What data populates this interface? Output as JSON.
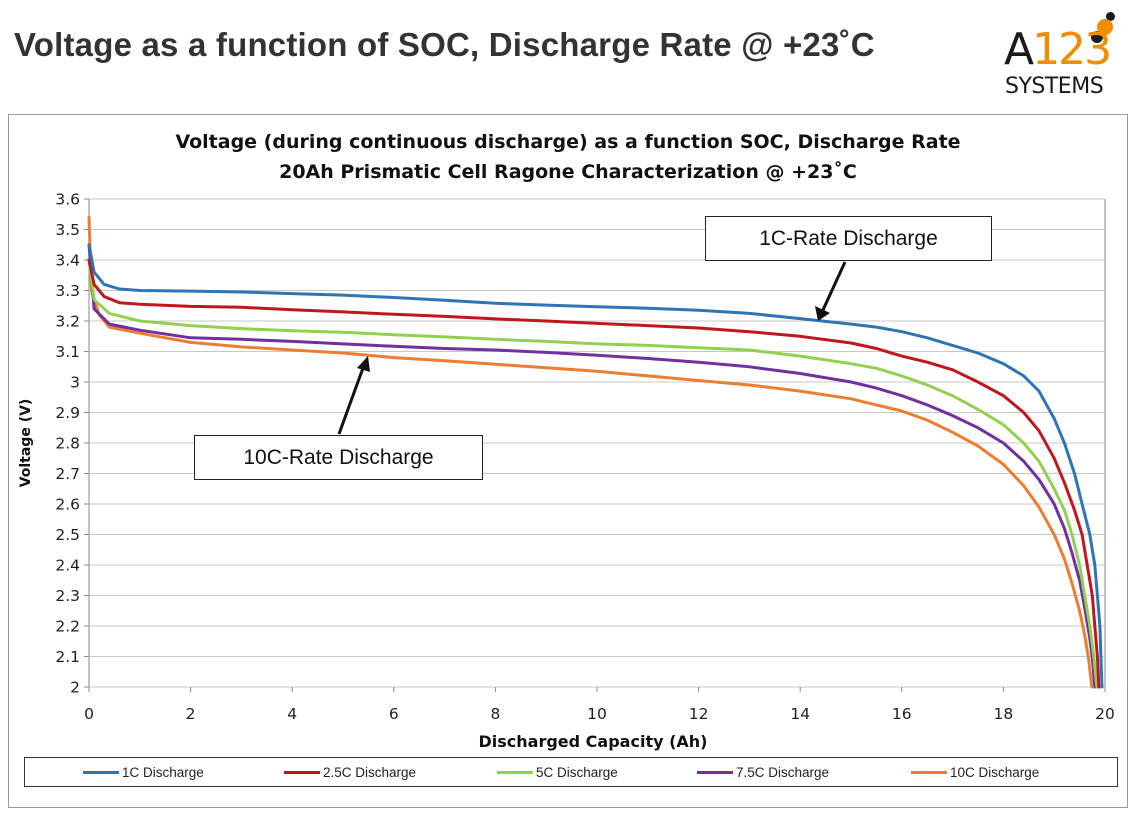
{
  "slide_title": "Voltage as a function of SOC, Discharge Rate @ +23˚C",
  "logo": {
    "brand_letter": "A",
    "brand_number": "123",
    "subtitle": "SYSTEMS"
  },
  "annotations": {
    "callout_1c": "1C-Rate Discharge",
    "callout_10c": "10C-Rate Discharge"
  },
  "chart_data": {
    "type": "line",
    "title": "Voltage (during continuous discharge) as a function SOC, Discharge Rate",
    "subtitle": "20Ah Prismatic Cell Ragone Characterization @ +23˚C",
    "xlabel": "Discharged Capacity (Ah)",
    "ylabel": "Voltage (V)",
    "xlim": [
      0,
      20
    ],
    "ylim": [
      2,
      3.6
    ],
    "x_ticks": [
      "0",
      "2",
      "4",
      "6",
      "8",
      "10",
      "12",
      "14",
      "16",
      "18",
      "20"
    ],
    "y_ticks": [
      "2",
      "2.1",
      "2.2",
      "2.3",
      "2.4",
      "2.5",
      "2.6",
      "2.7",
      "2.8",
      "2.9",
      "3",
      "3.1",
      "3.2",
      "3.3",
      "3.4",
      "3.5",
      "3.6"
    ],
    "grid": true,
    "legend_position": "bottom",
    "series": [
      {
        "name": "1C Discharge",
        "color": "#2e75b6",
        "points": [
          [
            0,
            3.45
          ],
          [
            0.1,
            3.36
          ],
          [
            0.3,
            3.32
          ],
          [
            0.6,
            3.305
          ],
          [
            1,
            3.3
          ],
          [
            2,
            3.298
          ],
          [
            3,
            3.295
          ],
          [
            4,
            3.29
          ],
          [
            5,
            3.285
          ],
          [
            6,
            3.277
          ],
          [
            7,
            3.268
          ],
          [
            8,
            3.258
          ],
          [
            9,
            3.252
          ],
          [
            10,
            3.247
          ],
          [
            11,
            3.242
          ],
          [
            12,
            3.235
          ],
          [
            13,
            3.225
          ],
          [
            14,
            3.208
          ],
          [
            15,
            3.19
          ],
          [
            15.5,
            3.18
          ],
          [
            16,
            3.165
          ],
          [
            16.5,
            3.145
          ],
          [
            17,
            3.12
          ],
          [
            17.5,
            3.095
          ],
          [
            18,
            3.06
          ],
          [
            18.4,
            3.02
          ],
          [
            18.7,
            2.97
          ],
          [
            19,
            2.88
          ],
          [
            19.2,
            2.8
          ],
          [
            19.4,
            2.7
          ],
          [
            19.55,
            2.6
          ],
          [
            19.7,
            2.5
          ],
          [
            19.8,
            2.4
          ],
          [
            19.85,
            2.3
          ],
          [
            19.9,
            2.2
          ],
          [
            19.92,
            2.1
          ],
          [
            19.94,
            2.0
          ]
        ]
      },
      {
        "name": "2.5C Discharge",
        "color": "#c0161d",
        "points": [
          [
            0,
            3.4
          ],
          [
            0.1,
            3.32
          ],
          [
            0.3,
            3.28
          ],
          [
            0.6,
            3.26
          ],
          [
            1,
            3.255
          ],
          [
            2,
            3.248
          ],
          [
            3,
            3.245
          ],
          [
            4,
            3.237
          ],
          [
            5,
            3.23
          ],
          [
            6,
            3.222
          ],
          [
            7,
            3.215
          ],
          [
            8,
            3.207
          ],
          [
            9,
            3.2
          ],
          [
            10,
            3.192
          ],
          [
            11,
            3.185
          ],
          [
            12,
            3.177
          ],
          [
            13,
            3.165
          ],
          [
            14,
            3.15
          ],
          [
            15,
            3.128
          ],
          [
            15.5,
            3.11
          ],
          [
            16,
            3.085
          ],
          [
            16.5,
            3.065
          ],
          [
            17,
            3.04
          ],
          [
            17.5,
            3.0
          ],
          [
            18,
            2.955
          ],
          [
            18.4,
            2.9
          ],
          [
            18.7,
            2.84
          ],
          [
            19,
            2.75
          ],
          [
            19.2,
            2.67
          ],
          [
            19.4,
            2.58
          ],
          [
            19.55,
            2.5
          ],
          [
            19.65,
            2.4
          ],
          [
            19.75,
            2.3
          ],
          [
            19.8,
            2.2
          ],
          [
            19.85,
            2.1
          ],
          [
            19.88,
            2.0
          ]
        ]
      },
      {
        "name": "5C Discharge",
        "color": "#92d050",
        "points": [
          [
            0,
            3.4
          ],
          [
            0.1,
            3.27
          ],
          [
            0.4,
            3.225
          ],
          [
            1,
            3.2
          ],
          [
            2,
            3.185
          ],
          [
            3,
            3.175
          ],
          [
            4,
            3.168
          ],
          [
            5,
            3.163
          ],
          [
            6,
            3.155
          ],
          [
            7,
            3.148
          ],
          [
            8,
            3.14
          ],
          [
            9,
            3.133
          ],
          [
            10,
            3.125
          ],
          [
            11,
            3.12
          ],
          [
            12,
            3.112
          ],
          [
            13,
            3.105
          ],
          [
            14,
            3.085
          ],
          [
            15,
            3.06
          ],
          [
            15.5,
            3.045
          ],
          [
            16,
            3.02
          ],
          [
            16.5,
            2.99
          ],
          [
            17,
            2.955
          ],
          [
            17.5,
            2.91
          ],
          [
            18,
            2.86
          ],
          [
            18.4,
            2.8
          ],
          [
            18.7,
            2.74
          ],
          [
            19,
            2.65
          ],
          [
            19.2,
            2.58
          ],
          [
            19.35,
            2.5
          ],
          [
            19.5,
            2.4
          ],
          [
            19.6,
            2.3
          ],
          [
            19.7,
            2.2
          ],
          [
            19.78,
            2.1
          ],
          [
            19.84,
            2.0
          ]
        ]
      },
      {
        "name": "7.5C Discharge",
        "color": "#7030a0",
        "points": [
          [
            0,
            3.45
          ],
          [
            0.1,
            3.24
          ],
          [
            0.4,
            3.19
          ],
          [
            1,
            3.17
          ],
          [
            2,
            3.145
          ],
          [
            3,
            3.14
          ],
          [
            4,
            3.133
          ],
          [
            5,
            3.125
          ],
          [
            6,
            3.117
          ],
          [
            7,
            3.11
          ],
          [
            8,
            3.105
          ],
          [
            9,
            3.097
          ],
          [
            10,
            3.088
          ],
          [
            11,
            3.077
          ],
          [
            12,
            3.065
          ],
          [
            13,
            3.05
          ],
          [
            14,
            3.028
          ],
          [
            15,
            3.0
          ],
          [
            15.5,
            2.98
          ],
          [
            16,
            2.955
          ],
          [
            16.5,
            2.925
          ],
          [
            17,
            2.89
          ],
          [
            17.5,
            2.85
          ],
          [
            18,
            2.8
          ],
          [
            18.4,
            2.74
          ],
          [
            18.7,
            2.68
          ],
          [
            19,
            2.6
          ],
          [
            19.2,
            2.52
          ],
          [
            19.35,
            2.44
          ],
          [
            19.5,
            2.35
          ],
          [
            19.6,
            2.26
          ],
          [
            19.7,
            2.16
          ],
          [
            19.76,
            2.08
          ],
          [
            19.8,
            2.0
          ]
        ]
      },
      {
        "name": "10C Discharge",
        "color": "#ed7d31",
        "points": [
          [
            0,
            3.54
          ],
          [
            0.05,
            3.3
          ],
          [
            0.2,
            3.22
          ],
          [
            0.4,
            3.18
          ],
          [
            1,
            3.16
          ],
          [
            2,
            3.13
          ],
          [
            3,
            3.115
          ],
          [
            4,
            3.105
          ],
          [
            5,
            3.095
          ],
          [
            6,
            3.08
          ],
          [
            7,
            3.07
          ],
          [
            8,
            3.058
          ],
          [
            9,
            3.047
          ],
          [
            10,
            3.035
          ],
          [
            11,
            3.02
          ],
          [
            12,
            3.005
          ],
          [
            13,
            2.99
          ],
          [
            14,
            2.97
          ],
          [
            15,
            2.945
          ],
          [
            15.5,
            2.925
          ],
          [
            16,
            2.905
          ],
          [
            16.5,
            2.875
          ],
          [
            17,
            2.835
          ],
          [
            17.5,
            2.79
          ],
          [
            18,
            2.73
          ],
          [
            18.4,
            2.66
          ],
          [
            18.7,
            2.59
          ],
          [
            19,
            2.5
          ],
          [
            19.2,
            2.42
          ],
          [
            19.35,
            2.34
          ],
          [
            19.5,
            2.25
          ],
          [
            19.6,
            2.17
          ],
          [
            19.68,
            2.09
          ],
          [
            19.74,
            2.0
          ]
        ]
      }
    ]
  }
}
